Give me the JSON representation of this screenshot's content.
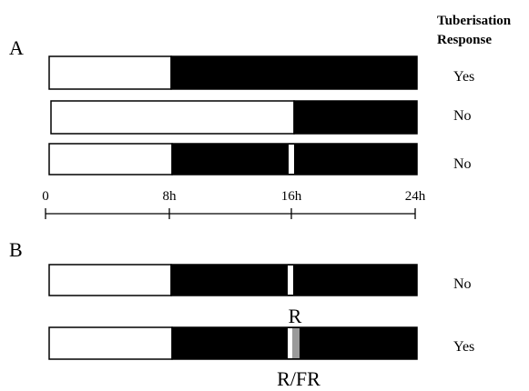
{
  "header": {
    "line1": "Tuberisation",
    "line2": "Response"
  },
  "panels": {
    "a": "A",
    "b": "B"
  },
  "axis": {
    "ticks": [
      "0",
      "8h",
      "16h",
      "24h"
    ]
  },
  "schemes": [
    {
      "panel": "A",
      "light_hours": 8,
      "night_break": null,
      "response": "Yes"
    },
    {
      "panel": "A",
      "light_hours": 16,
      "night_break": null,
      "response": "No"
    },
    {
      "panel": "A",
      "light_hours": 8,
      "night_break": "R",
      "response": "No"
    },
    {
      "panel": "B",
      "light_hours": 8,
      "night_break": "R",
      "response": "No",
      "label": "R"
    },
    {
      "panel": "B",
      "light_hours": 8,
      "night_break": "R/FR",
      "response": "Yes",
      "label": "R/FR"
    }
  ],
  "colors": {
    "light": "#ffffff",
    "dark": "#000000",
    "red_break": "#ffffff",
    "far_red_break": "#9a9a9a"
  }
}
